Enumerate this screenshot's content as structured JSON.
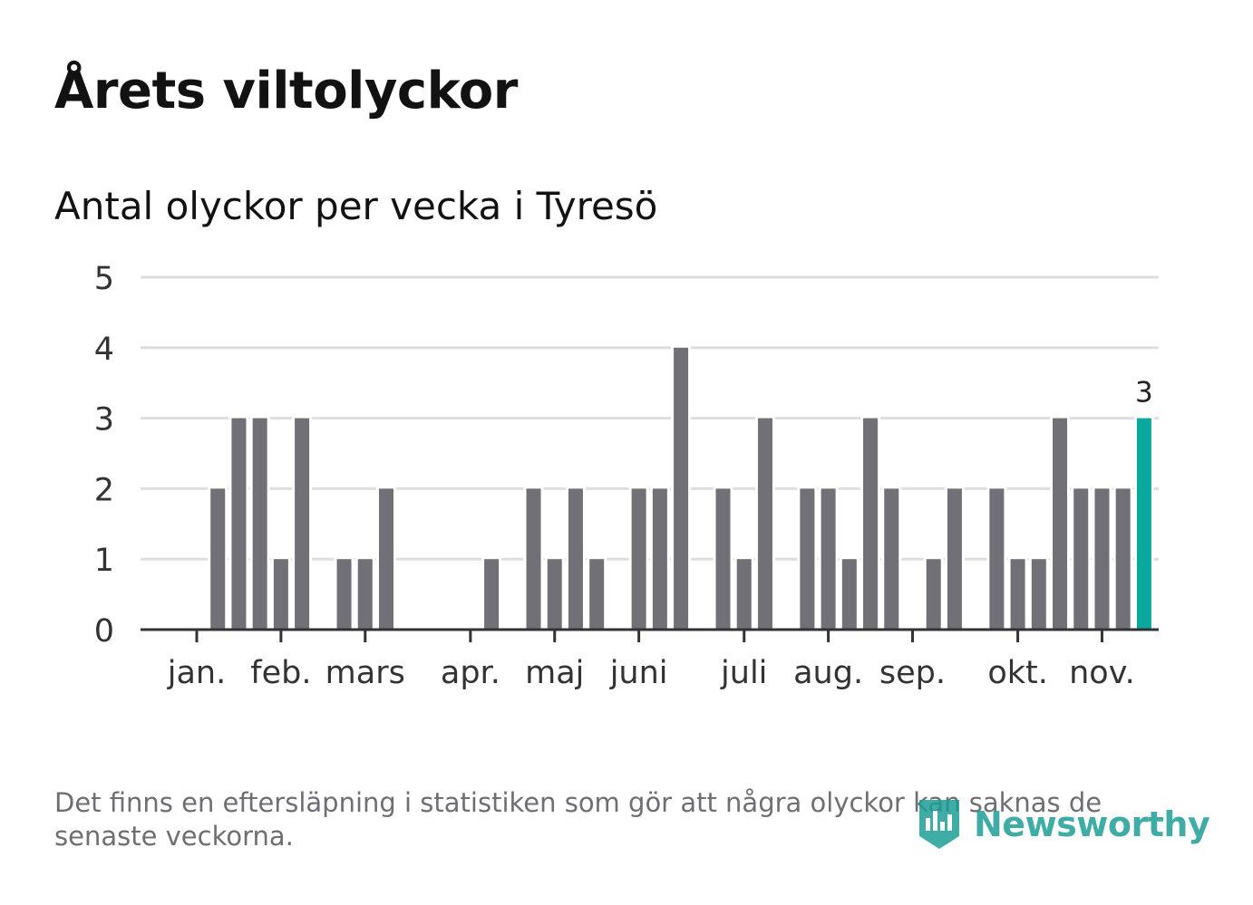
{
  "header": {
    "title": "Årets viltolyckor",
    "subtitle": "Antal olyckor per vecka i Tyresö"
  },
  "footer": {
    "note": "Det finns en eftersläpning i statistiken som gör att några olyckor kan saknas de senaste veckorna.",
    "brand": "Newsworthy"
  },
  "colors": {
    "bar": "#717076",
    "highlight": "#0da89d",
    "grid": "#dedede",
    "axis": "#333333",
    "brand": "#1e9e97"
  },
  "chart_data": {
    "type": "bar",
    "title": "Antal olyckor per vecka i Tyresö",
    "xlabel": "",
    "ylabel": "",
    "ylim": [
      0,
      5
    ],
    "yticks": [
      0,
      1,
      2,
      3,
      4,
      5
    ],
    "grid": true,
    "first_week": 1,
    "x_unit": "week",
    "values": [
      0,
      2,
      3,
      3,
      1,
      3,
      0,
      1,
      1,
      2,
      0,
      0,
      0,
      0,
      1,
      0,
      2,
      1,
      2,
      1,
      0,
      2,
      2,
      4,
      0,
      2,
      1,
      3,
      0,
      2,
      2,
      1,
      3,
      2,
      0,
      1,
      2,
      0,
      2,
      1,
      1,
      3,
      2,
      2,
      2,
      3
    ],
    "highlight_index": 45,
    "highlight_label": "3",
    "month_ticks": [
      {
        "label": "jan.",
        "week": 1
      },
      {
        "label": "feb.",
        "week": 5
      },
      {
        "label": "mars",
        "week": 9
      },
      {
        "label": "apr.",
        "week": 14
      },
      {
        "label": "maj",
        "week": 18
      },
      {
        "label": "juni",
        "week": 22
      },
      {
        "label": "juli",
        "week": 27
      },
      {
        "label": "aug.",
        "week": 31
      },
      {
        "label": "sep.",
        "week": 35
      },
      {
        "label": "okt.",
        "week": 40
      },
      {
        "label": "nov.",
        "week": 44
      }
    ]
  }
}
